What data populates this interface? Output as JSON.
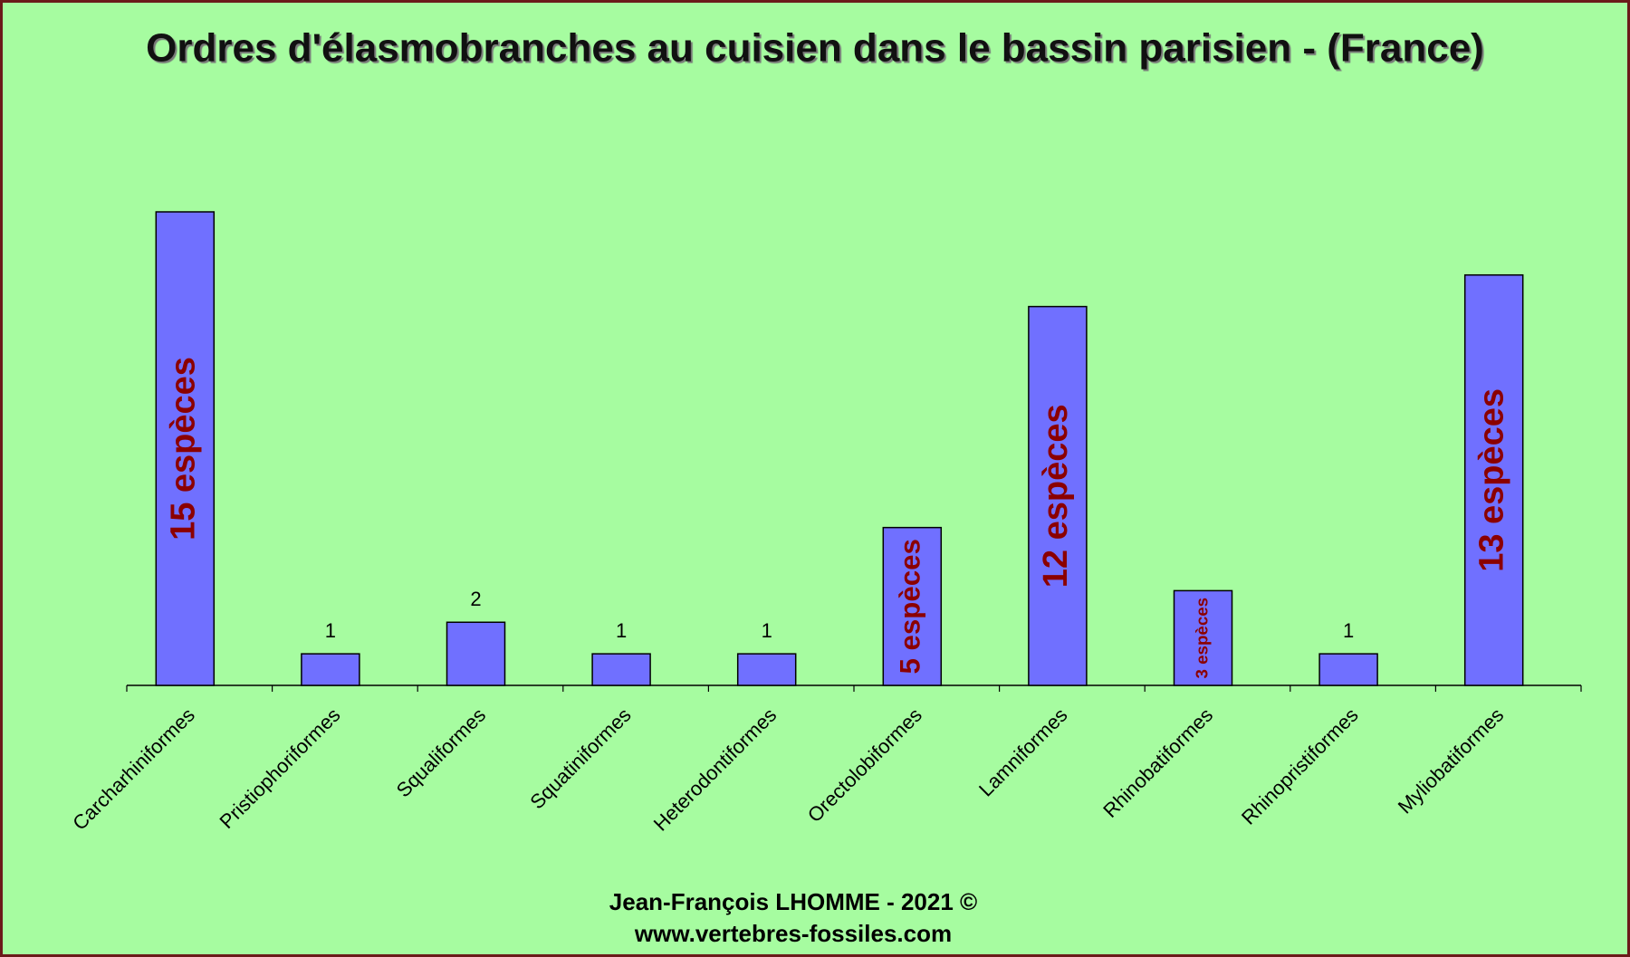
{
  "chart_data": {
    "type": "bar",
    "title": "Ordres d'élasmobranches au cuisien dans le bassin parisien - (France)",
    "categories": [
      "Carcharhiniformes",
      "Pristiophoriformes",
      "Squaliformes",
      "Squatiniformes",
      "Heterodontiformes",
      "Orectolobiformes",
      "Lamniformes",
      "Rhinobatiformes",
      "Rhinopristiformes",
      "Myliobatiformes"
    ],
    "values": [
      15,
      1,
      2,
      1,
      1,
      5,
      12,
      3,
      1,
      13
    ],
    "value_labels": [
      "15 espèces",
      "1",
      "2",
      "1",
      "1",
      "5 espèces",
      "12 espèces",
      "3 espèces",
      "1",
      "13 espèces"
    ],
    "color": "#7070ff",
    "ylim": [
      0,
      15
    ],
    "credit": [
      "Jean-François LHOMME  - 2021  ©",
      "www.vertebres-fossiles.com"
    ]
  }
}
